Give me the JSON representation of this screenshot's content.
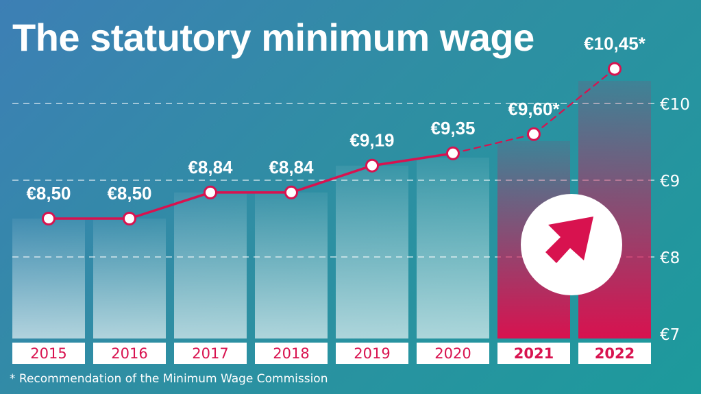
{
  "title": "The statutory minimum wage",
  "footnote": "* Recommendation of the Minimum Wage Commission",
  "colors": {
    "accent": "#d8124f",
    "text": "#ffffff",
    "background_start": "#3d7fb5",
    "background_end": "#1d9a9c"
  },
  "icons": {
    "badge": "arrow-up-right-icon"
  },
  "chart_data": {
    "type": "bar",
    "title": "The statutory minimum wage",
    "xlabel": "",
    "ylabel": "",
    "categories": [
      "2015",
      "2016",
      "2017",
      "2018",
      "2019",
      "2020",
      "2021",
      "2022"
    ],
    "values": [
      8.5,
      8.5,
      8.84,
      8.84,
      9.19,
      9.35,
      9.6,
      10.45
    ],
    "value_labels": [
      "€8,50",
      "€8,50",
      "€8,84",
      "€8,84",
      "€9,19",
      "€9,35",
      "€9,60*",
      "€10,45*"
    ],
    "highlighted": [
      false,
      false,
      false,
      false,
      false,
      false,
      true,
      true
    ],
    "projected": [
      false,
      false,
      false,
      false,
      false,
      false,
      true,
      true
    ],
    "ylim": [
      7,
      10.5
    ],
    "y_ticks": [
      {
        "value": 7,
        "label": "€7"
      },
      {
        "value": 8,
        "label": "€8"
      },
      {
        "value": 9,
        "label": "€9"
      },
      {
        "value": 10,
        "label": "€10"
      }
    ],
    "grid": "dashed horizontal lines",
    "legend": "none"
  }
}
